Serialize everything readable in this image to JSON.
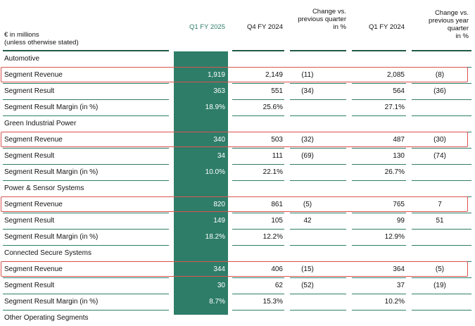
{
  "header": {
    "unit_line1": "€ in millions",
    "unit_line2": "(unless otherwise stated)",
    "col_q1fy2025": "Q1 FY 2025",
    "col_q4fy2024": "Q4 FY 2024",
    "col_change_q_l1": "Change vs.",
    "col_change_q_l2": "previous quarter",
    "col_change_q_l3": "in %",
    "col_q1fy2024": "Q1 FY 2024",
    "col_change_y_l1": "Change vs.",
    "col_change_y_l2": "previous year",
    "col_change_y_l3": "quarter",
    "col_change_y_l4": "in %"
  },
  "sections": [
    {
      "title": "Automotive",
      "rows": [
        {
          "label": "Segment Revenue",
          "q1fy2025": "1,919",
          "q4fy2024": "2,149",
          "chg_q": "(11)",
          "q1fy2024": "2,085",
          "chg_y": "(8)",
          "highlighted": true
        },
        {
          "label": "Segment Result",
          "q1fy2025": "363",
          "q4fy2024": "551",
          "chg_q": "(34)",
          "q1fy2024": "564",
          "chg_y": "(36)",
          "highlighted": false
        },
        {
          "label": "Segment Result Margin (in %)",
          "q1fy2025": "18.9%",
          "q4fy2024": "25.6%",
          "chg_q": "",
          "q1fy2024": "27.1%",
          "chg_y": "",
          "highlighted": false
        }
      ]
    },
    {
      "title": "Green Industrial Power",
      "rows": [
        {
          "label": "Segment Revenue",
          "q1fy2025": "340",
          "q4fy2024": "503",
          "chg_q": "(32)",
          "q1fy2024": "487",
          "chg_y": "(30)",
          "highlighted": true
        },
        {
          "label": "Segment Result",
          "q1fy2025": "34",
          "q4fy2024": "111",
          "chg_q": "(69)",
          "q1fy2024": "130",
          "chg_y": "(74)",
          "highlighted": false
        },
        {
          "label": "Segment Result Margin (in %)",
          "q1fy2025": "10.0%",
          "q4fy2024": "22.1%",
          "chg_q": "",
          "q1fy2024": "26.7%",
          "chg_y": "",
          "highlighted": false
        }
      ]
    },
    {
      "title": "Power & Sensor Systems",
      "rows": [
        {
          "label": "Segment Revenue",
          "q1fy2025": "820",
          "q4fy2024": "861",
          "chg_q": "(5)",
          "q1fy2024": "765",
          "chg_y": "7",
          "highlighted": true
        },
        {
          "label": "Segment Result",
          "q1fy2025": "149",
          "q4fy2024": "105",
          "chg_q": "42",
          "q1fy2024": "99",
          "chg_y": "51",
          "highlighted": false
        },
        {
          "label": "Segment Result Margin (in %)",
          "q1fy2025": "18.2%",
          "q4fy2024": "12.2%",
          "chg_q": "",
          "q1fy2024": "12.9%",
          "chg_y": "",
          "highlighted": false
        }
      ]
    },
    {
      "title": "Connected Secure Systems",
      "rows": [
        {
          "label": "Segment Revenue",
          "q1fy2025": "344",
          "q4fy2024": "406",
          "chg_q": "(15)",
          "q1fy2024": "364",
          "chg_y": "(5)",
          "highlighted": true
        },
        {
          "label": "Segment Result",
          "q1fy2025": "30",
          "q4fy2024": "62",
          "chg_q": "(52)",
          "q1fy2024": "37",
          "chg_y": "(19)",
          "highlighted": false
        },
        {
          "label": "Segment Result Margin (in %)",
          "q1fy2025": "8.7%",
          "q4fy2024": "15.3%",
          "chg_q": "",
          "q1fy2024": "10.2%",
          "chg_y": "",
          "highlighted": false
        }
      ]
    },
    {
      "title": "Other Operating Segments",
      "rows": []
    }
  ]
}
